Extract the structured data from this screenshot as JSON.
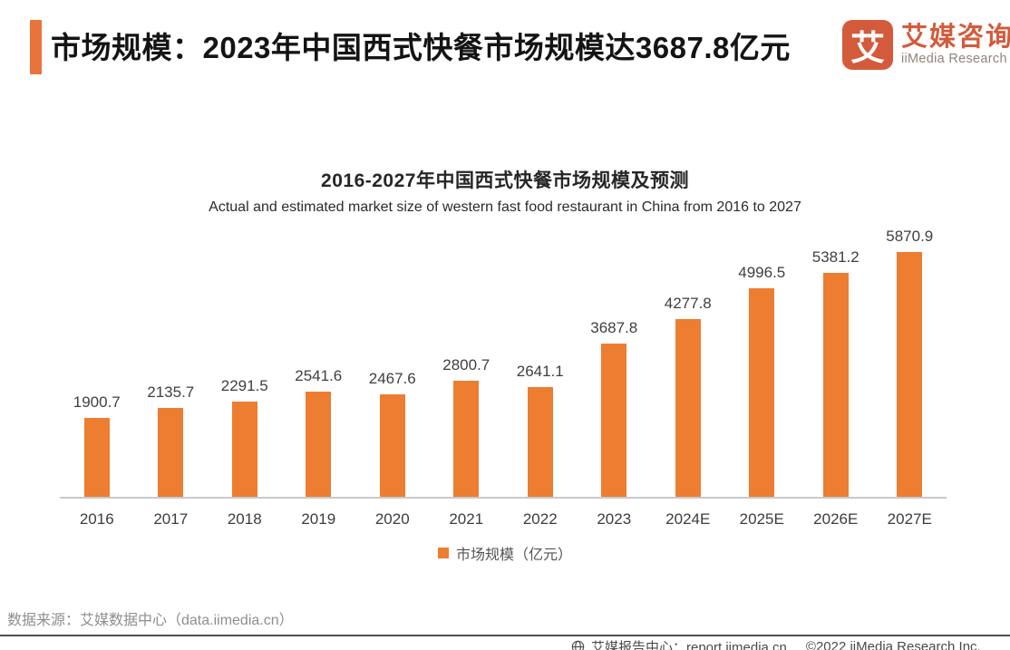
{
  "header": {
    "title": "市场规模：2023年中国西式快餐市场规模达3687.8亿元",
    "logo": {
      "glyph": "艾",
      "name_cn": "艾媒咨询",
      "name_en": "iiMedia Research"
    }
  },
  "chart_data": {
    "type": "bar",
    "title": "2016-2027年中国西式快餐市场规模及预测",
    "subtitle": "Actual and estimated market size of western fast food restaurant in China from 2016 to 2027",
    "categories": [
      "2016",
      "2017",
      "2018",
      "2019",
      "2020",
      "2021",
      "2022",
      "2023",
      "2024E",
      "2025E",
      "2026E",
      "2027E"
    ],
    "values": [
      1900.7,
      2135.7,
      2291.5,
      2541.6,
      2467.6,
      2800.7,
      2641.1,
      3687.8,
      4277.8,
      4996.5,
      5381.2,
      5870.9
    ],
    "legend": "市场规模（亿元）",
    "legend_position": "bottom",
    "value_labels": true,
    "grid": false,
    "ylim": [
      0,
      5870.9
    ],
    "xlabel": "",
    "ylabel": ""
  },
  "footer": {
    "source": "数据来源：艾媒数据中心（data.iimedia.cn）",
    "report_center": "艾媒报告中心：report.iimedia.cn",
    "copyright": "©2022 iiMedia Research Inc."
  },
  "colors": {
    "bar": "#ED7D31",
    "accent_bar": "#E8743C",
    "brand": "#D35B3C",
    "axis_line": "#C9C9C9",
    "footer_rule": "#4F4F4F"
  }
}
